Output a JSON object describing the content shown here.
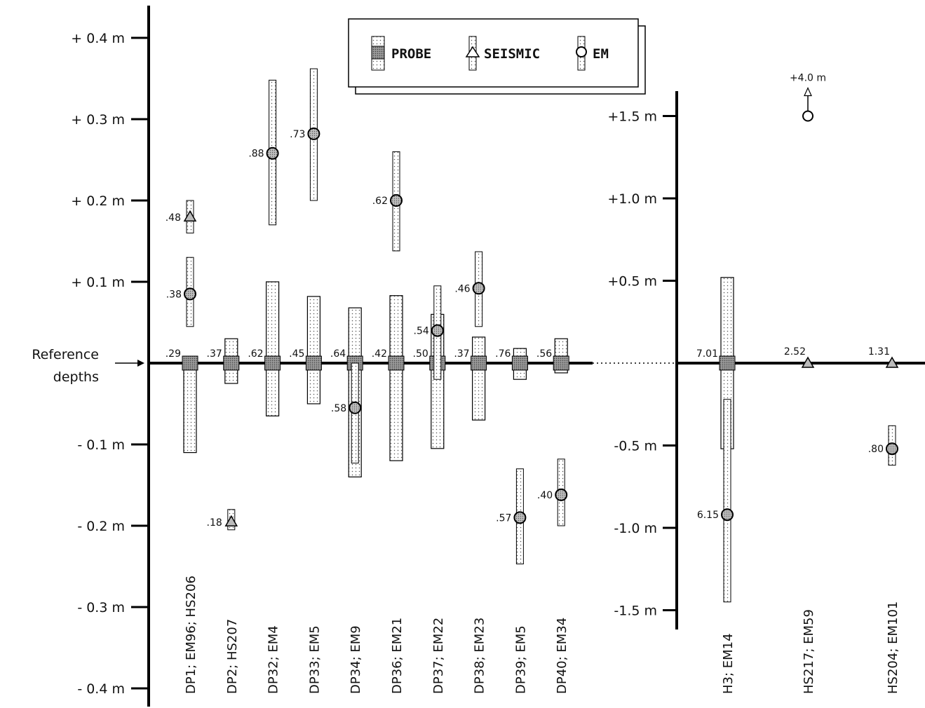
{
  "chart_data": [
    {
      "type": "range-bar",
      "panel": "left",
      "y_unit": "m",
      "ylim": [
        -0.4,
        0.4
      ],
      "yticks": [
        0.4,
        0.3,
        0.2,
        0.1,
        -0.1,
        -0.2,
        -0.3,
        -0.4
      ],
      "ytick_labels": [
        "+ 0.4 m",
        "+ 0.3 m",
        "+ 0.2 m",
        "+ 0.1 m",
        "- 0.1 m",
        "- 0.2 m",
        "- 0.3 m",
        "- 0.4 m"
      ],
      "reference_label": [
        "Reference",
        "depths"
      ],
      "legend": [
        "PROBE",
        "SEISMIC",
        "EM"
      ],
      "categories": [
        "DP1; EM96; HS206",
        "DP2; HS207",
        "DP32; EM4",
        "DP33; EM5",
        "DP34; EM9",
        "DP36; EM21",
        "DP37; EM22",
        "DP38; EM23",
        "DP39; EM5",
        "DP40; EM34"
      ],
      "series": [
        {
          "name": "PROBE",
          "points": [
            {
              "category": "DP1; EM96; HS206",
              "value": 0.0,
              "low": -0.11,
              "high": 0.0,
              "label": ".29"
            },
            {
              "category": "DP2; HS207",
              "value": 0.0,
              "low": -0.025,
              "high": 0.03,
              "label": ".37"
            },
            {
              "category": "DP32; EM4",
              "value": 0.0,
              "low": -0.065,
              "high": 0.1,
              "label": ".62"
            },
            {
              "category": "DP33; EM5",
              "value": 0.0,
              "low": -0.05,
              "high": 0.082,
              "label": ".45"
            },
            {
              "category": "DP34; EM9",
              "value": 0.0,
              "low": -0.14,
              "high": 0.068,
              "label": ".64"
            },
            {
              "category": "DP36; EM21",
              "value": 0.0,
              "low": -0.12,
              "high": 0.083,
              "label": ".42"
            },
            {
              "category": "DP37; EM22",
              "value": 0.0,
              "low": -0.105,
              "high": 0.06,
              "label": ".50"
            },
            {
              "category": "DP38; EM23",
              "value": 0.0,
              "low": -0.07,
              "high": 0.032,
              "label": ".37"
            },
            {
              "category": "DP39; EM5",
              "value": 0.0,
              "low": -0.02,
              "high": 0.018,
              "label": ".76"
            },
            {
              "category": "DP40; EM34",
              "value": 0.0,
              "low": -0.012,
              "high": 0.03,
              "label": ".56"
            }
          ]
        },
        {
          "name": "SEISMIC",
          "points": [
            {
              "category": "DP1; EM96; HS206",
              "value": 0.18,
              "low": 0.16,
              "high": 0.2,
              "label": ".48"
            },
            {
              "category": "DP2; HS207",
              "value": -0.195,
              "low": -0.205,
              "high": -0.18,
              "label": ".18"
            }
          ]
        },
        {
          "name": "EM",
          "points": [
            {
              "category": "DP1; EM96; HS206",
              "value": 0.085,
              "low": 0.045,
              "high": 0.13,
              "label": ".38"
            },
            {
              "category": "DP32; EM4",
              "value": 0.258,
              "low": 0.17,
              "high": 0.348,
              "label": ".88"
            },
            {
              "category": "DP33; EM5",
              "value": 0.282,
              "low": 0.2,
              "high": 0.362,
              "label": ".73"
            },
            {
              "category": "DP34; EM9",
              "value": -0.055,
              "low": -0.123,
              "high": 0.0,
              "label": ".58"
            },
            {
              "category": "DP36; EM21",
              "value": 0.2,
              "low": 0.138,
              "high": 0.26,
              "label": ".62"
            },
            {
              "category": "DP37; EM22",
              "value": 0.04,
              "low": -0.02,
              "high": 0.095,
              "label": ".54"
            },
            {
              "category": "DP38; EM23",
              "value": 0.092,
              "low": 0.045,
              "high": 0.137,
              "label": ".46"
            },
            {
              "category": "DP39; EM5",
              "value": -0.19,
              "low": -0.247,
              "high": -0.13,
              "label": ".57"
            },
            {
              "category": "DP40; EM34",
              "value": -0.162,
              "low": -0.2,
              "high": -0.118,
              "label": ".40"
            }
          ]
        }
      ]
    },
    {
      "type": "range-bar",
      "panel": "right",
      "y_unit": "m",
      "ylim": [
        -1.5,
        1.5
      ],
      "yticks": [
        1.5,
        1.0,
        0.5,
        -0.5,
        -1.0,
        -1.5
      ],
      "ytick_labels": [
        "+1.5 m",
        "+1.0 m",
        "+0.5  m",
        "-0.5 m",
        "-1.0 m",
        "-1.5 m"
      ],
      "categories": [
        "H3; EM14",
        "HS217; EM59",
        "HS204; EM101"
      ],
      "series": [
        {
          "name": "PROBE",
          "points": [
            {
              "category": "H3; EM14",
              "value": 0.0,
              "low": -0.52,
              "high": 0.52,
              "label": "7.01"
            }
          ]
        },
        {
          "name": "SEISMIC",
          "points": [
            {
              "category": "HS217; EM59",
              "value": 0.0,
              "label": "2.52"
            },
            {
              "category": "HS204; EM101",
              "value": 0.0,
              "label": "1.31"
            }
          ]
        },
        {
          "name": "EM",
          "points": [
            {
              "category": "H3; EM14",
              "value": -0.92,
              "low": -1.45,
              "high": -0.22,
              "label": "6.15"
            },
            {
              "category": "HS204; EM101",
              "value": -0.52,
              "low": -0.62,
              "high": -0.38,
              "label": ".80"
            }
          ]
        }
      ],
      "annotations": [
        {
          "category": "HS217; EM59",
          "text": "+4.0 m",
          "marker_value": 1.5,
          "arrow": "up"
        }
      ]
    }
  ]
}
